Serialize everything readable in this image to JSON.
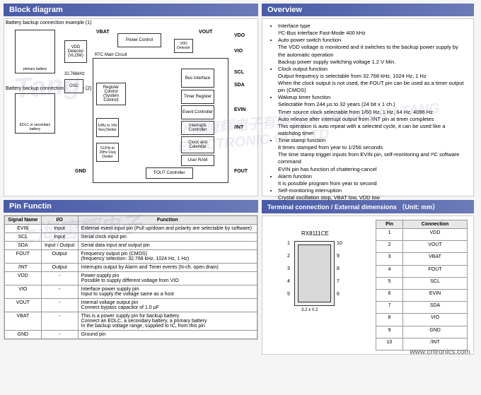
{
  "sections": {
    "block": "Block diagram",
    "overview": "Overview",
    "pin": "Pin Functin",
    "terminal": "Terminal connection / External dimensions （Unit: mm）"
  },
  "block_labels": {
    "ex1": "Battery backup connection example (1)",
    "ex2": "Battery backup connection example (2)",
    "vbat": "VBAT",
    "vdet": "VDD Detector (VLOW)",
    "primary": "primary battery",
    "edlc": "EDLC or secondary battery",
    "osc": "OSC",
    "freq": "32.768kHz",
    "pc": "Power Control",
    "rc": "Register Control (System Control)",
    "vdd_det2": "VDD Detector",
    "rtc": "RTC Main Circuit",
    "div1": "10Hz to 1Hz freq Divider",
    "div2": "512Hz to 20Hz Freq Divider",
    "bus": "Bus Interface",
    "timer": "Timer Register",
    "event": "Event Controller",
    "intc": "Interrupts Controller",
    "clock": "Clock and Calendar",
    "ram": "User RAM",
    "fout": "FOUT Controller",
    "vout": "VOUT",
    "vdo": "VDO",
    "vio": "VIO",
    "scl": "SCL",
    "sda": "SDA",
    "evin": "EVIN",
    "int": "/INT",
    "gnd": "GND",
    "foutp": "FOUT",
    "vbat2": "VBAT"
  },
  "overview": [
    {
      "t": "Interface type",
      "s": [
        "I²C-Bus interface Fast-Mode 400 kHz"
      ]
    },
    {
      "t": "Auto power switch function",
      "s": [
        "The VDD voltage is monitored and it switches to the backup power supply by the automatic operation",
        "Backup power supply switching voltage 1.2 V Min."
      ]
    },
    {
      "t": "Clock output function",
      "s": [
        "Output frequency is selectable from 32.768 kHz, 1024 Hz, 1 Hz",
        "When the clock output is not used, the FOUT pin can be used as a timer output pin (CMOS)"
      ]
    },
    {
      "t": "Wakeup timer function",
      "s": [
        "Selectable from 244 µs to 32 years (24 bit x 1 ch.)",
        "Timer source clock selectable from 1/60 Hz, 1 Hz, 64 Hz, 4096 Hz",
        "Auto release after interrupt output from /INT pin at timer completes",
        "This operation is auto repeat with a selected cycle, it can be used like a watchdog timer"
      ]
    },
    {
      "t": "Time stamp function",
      "s": [
        "8 times stamped from year to 1/256 seconds",
        "The time stamp trigger inputs from EVIN pin, self-monitoring and I²C software command",
        "EVIN pin has function of chattering-cancel"
      ]
    },
    {
      "t": "Alarm function",
      "s": [
        "It is possible program from year to second"
      ]
    },
    {
      "t": "Self-monitoring interruption",
      "s": [
        "Crystal oscillation stop, VBAT low, VDD low"
      ]
    }
  ],
  "pin_headers": [
    "Signal Name",
    "I/O",
    "Function"
  ],
  "pins": [
    {
      "n": "EVIN",
      "io": "Input",
      "f": "External event input pin (Pull up/down and polarity are selectable by software)"
    },
    {
      "n": "SCL",
      "io": "Input",
      "f": "Serial clock input pin"
    },
    {
      "n": "SDA",
      "io": "Input / Output",
      "f": "Serial data input and output pin"
    },
    {
      "n": "FOUT",
      "io": "Output",
      "f": "Frequency output pin (CMOS)\n(frequency selection: 32.768 kHz, 1024 Hz, 1 Hz)"
    },
    {
      "n": "/INT",
      "io": "Output",
      "f": "Interrupts output by Alarm and Timer events (N-ch. open drain)"
    },
    {
      "n": "VDD",
      "io": "-",
      "f": "Power-supply pin\nPossible to supply different voltage from VIO"
    },
    {
      "n": "VIO",
      "io": "-",
      "f": "Interface power supply pin\nInput to supply the voltage same as a host"
    },
    {
      "n": "VOUT",
      "io": "-",
      "f": "Internal voltage output pin\nConnect bypass capacitor of 1.0 µF"
    },
    {
      "n": "VBAT",
      "io": "-",
      "f": "This is a power supply pin for backup battery\nConnect an EDLC, a secondary battery, a primary battery\nIn the backup voltage range, supplied to IC, from this pin"
    },
    {
      "n": "GND",
      "io": "-",
      "f": "Ground pin"
    }
  ],
  "chip_name": "RX8111CE",
  "conn_headers": [
    "Pin",
    "Connection"
  ],
  "connections": [
    {
      "p": "1",
      "c": "VDD"
    },
    {
      "p": "2",
      "c": "VOUT"
    },
    {
      "p": "3",
      "c": "VBAT"
    },
    {
      "p": "4",
      "c": "FOUT"
    },
    {
      "p": "5",
      "c": "SCL"
    },
    {
      "p": "6",
      "c": "EVIN"
    },
    {
      "p": "7",
      "c": "SDA"
    },
    {
      "p": "8",
      "c": "VIO"
    },
    {
      "p": "9",
      "c": "GND"
    },
    {
      "p": "10",
      "c": "/INT"
    }
  ],
  "watermarks": {
    "wm3": "上海唐辉电子",
    "wm2": "上海唐辉电子有限公司 SHANGHAI TANG ELECTRONIC CO.,LTD",
    "wm1": "Tang"
  },
  "footer": "www.cntronics.com"
}
